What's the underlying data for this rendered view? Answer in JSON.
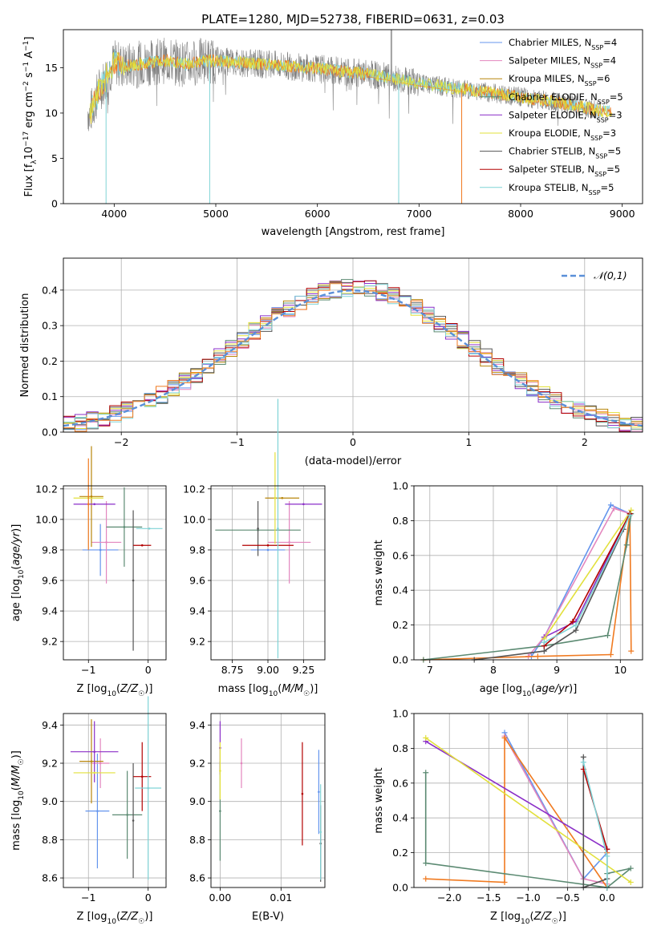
{
  "title": "PLATE=1280, MJD=52738, FIBERID=0631, z=0.03",
  "colors": {
    "Chabrier MILES": "#6495ed",
    "Salpeter MILES": "#e386be",
    "Kroupa MILES": "#b8860b",
    "Chabrier ELODIE": "#5b8a72",
    "Salpeter ELODIE": "#8b2fc8",
    "Kroupa ELODIE": "#e2e03b",
    "Chabrier STELIB": "#555555",
    "Salpeter STELIB": "#b30000",
    "Kroupa STELIB": "#7fd3d6",
    "orange": "#f07a20",
    "gauss": "#5a8fd8",
    "data": "#808080"
  },
  "chart_data": [
    {
      "id": "spectrum",
      "type": "line",
      "xlabel": "wavelength [Angstrom, rest frame]",
      "ylabel": "Flux [f_λ 10^-17 erg cm^-2 s^-1 A^-1]",
      "xlim": [
        3500,
        9200
      ],
      "ylim": [
        0,
        19.2
      ],
      "xticks": [
        "4000",
        "5000",
        "6000",
        "7000",
        "8000",
        "9000"
      ],
      "yticks": [
        "0",
        "5",
        "10",
        "15"
      ],
      "legend_position": "top-right",
      "legend": [
        "Chabrier MILES, N_SSP=4",
        "Salpeter MILES, N_SSP=4",
        "Kroupa MILES, N_SSP=6",
        "Chabrier ELODIE, N_SSP=5",
        "Salpeter ELODIE, N_SSP=3",
        "Kroupa ELODIE, N_SSP=3",
        "Chabrier STELIB, N_SSP=5",
        "Salpeter STELIB, N_SSP=5",
        "Kroupa STELIB, N_SSP=5"
      ],
      "continuum": {
        "x": [
          3750,
          3850,
          3950,
          4000,
          4100,
          4300,
          4500,
          4700,
          4900,
          5200,
          5600,
          6000,
          6500,
          7000,
          7400,
          7800,
          8300,
          8600,
          8800
        ],
        "y": [
          9.5,
          12.5,
          14.5,
          15.6,
          15.2,
          15.5,
          15.8,
          15.4,
          15.8,
          15.6,
          15.3,
          14.9,
          14.3,
          13.3,
          12.7,
          12.1,
          11.3,
          10.7,
          10.2
        ]
      },
      "dropouts": [
        [
          3920,
          0
        ],
        [
          4940,
          0
        ],
        [
          6800,
          0
        ],
        [
          7420,
          0
        ]
      ]
    },
    {
      "id": "residuals",
      "type": "bar",
      "xlabel": "(data-model)/error",
      "ylabel": "Normed distribution",
      "xlim": [
        -2.5,
        2.5
      ],
      "ylim": [
        0,
        0.49
      ],
      "xticks": [
        "−2",
        "−1",
        "0",
        "1",
        "2"
      ],
      "yticks": [
        "0.0",
        "0.1",
        "0.2",
        "0.3",
        "0.4"
      ],
      "legend": [
        "𝒩(0,1)"
      ],
      "legend_position": "top-right",
      "bin_width": 0.1,
      "bin_start": -2.5,
      "gaussian": {
        "mean": 0,
        "sigma": 1
      }
    },
    {
      "id": "age-vs-Z",
      "type": "scatter",
      "xlabel": "Z [log10(Z/Z☉)]",
      "ylabel": "age [log10(age/yr)]",
      "xlim": [
        -1.42,
        0.3
      ],
      "ylim": [
        9.08,
        10.22
      ],
      "xticks": [
        "−1",
        "0"
      ],
      "yticks": [
        "9.2",
        "9.4",
        "9.6",
        "9.8",
        "10.0",
        "10.2"
      ],
      "points": [
        {
          "s": "Chabrier MILES",
          "x": -0.8,
          "y": 9.8,
          "xerr": 0.3,
          "yerr": 0.17
        },
        {
          "s": "Salpeter MILES",
          "x": -0.7,
          "y": 9.85,
          "xerr": 0.25,
          "yerr": 0.27
        },
        {
          "s": "Kroupa MILES",
          "x": -0.95,
          "y": 10.15,
          "xerr": 0.2,
          "yerr": 0.33
        },
        {
          "s": "Chabrier ELODIE",
          "x": -0.4,
          "y": 9.95,
          "xerr": 0.3,
          "yerr": 0.26
        },
        {
          "s": "Salpeter ELODIE",
          "x": -0.9,
          "y": 10.1,
          "xerr": 0.35,
          "yerr": 0.0
        },
        {
          "s": "Kroupa ELODIE",
          "x": -1.0,
          "y": 10.14,
          "xerr": 0.25,
          "yerr": 0.0
        },
        {
          "s": "Chabrier STELIB",
          "x": -0.25,
          "y": 9.6,
          "xerr": 0.0,
          "yerr": 0.46
        },
        {
          "s": "Salpeter STELIB",
          "x": -0.1,
          "y": 9.83,
          "xerr": 0.15,
          "yerr": 0.0
        },
        {
          "s": "Kroupa STELIB",
          "x": 0.02,
          "y": 9.94,
          "xerr": 0.22,
          "yerr": 0.0
        },
        {
          "s": "orange",
          "x": -1.0,
          "y": 10.1,
          "xerr": 0.0,
          "yerr": 0.3
        }
      ]
    },
    {
      "id": "age-vs-mass",
      "type": "scatter",
      "xlabel": "mass [log10(M/M☉)]",
      "ylabel": "",
      "xlim": [
        8.6,
        9.4
      ],
      "ylim": [
        9.08,
        10.22
      ],
      "xticks": [
        "8.75",
        "9.00",
        "9.25"
      ],
      "yticks": [
        "9.2",
        "9.4",
        "9.6",
        "9.8",
        "10.0",
        "10.2"
      ],
      "points": [
        {
          "s": "Chabrier MILES",
          "x": 9.0,
          "y": 9.8,
          "xerr": 0.12,
          "yerr": 0.0
        },
        {
          "s": "Salpeter MILES",
          "x": 9.15,
          "y": 9.85,
          "xerr": 0.15,
          "yerr": 0.27
        },
        {
          "s": "Kroupa MILES",
          "x": 9.1,
          "y": 10.14,
          "xerr": 0.12,
          "yerr": 0.0
        },
        {
          "s": "Chabrier ELODIE",
          "x": 8.93,
          "y": 9.93,
          "xerr": 0.3,
          "yerr": 0.0
        },
        {
          "s": "Salpeter ELODIE",
          "x": 9.25,
          "y": 10.1,
          "xerr": 0.13,
          "yerr": 0.0
        },
        {
          "s": "Kroupa ELODIE",
          "x": 9.05,
          "y": 10.14,
          "xerr": 0.0,
          "yerr": 0.3
        },
        {
          "s": "Chabrier STELIB",
          "x": 8.93,
          "y": 9.94,
          "xerr": 0.0,
          "yerr": 0.18
        },
        {
          "s": "Salpeter STELIB",
          "x": 9.0,
          "y": 9.83,
          "xerr": 0.18,
          "yerr": 0.0
        },
        {
          "s": "Kroupa STELIB",
          "x": 9.07,
          "y": 9.94,
          "xerr": 0.0,
          "yerr": 0.85
        }
      ]
    },
    {
      "id": "massweight-vs-age",
      "type": "line",
      "xlabel": "age [log10(age/yr)]",
      "ylabel": "mass weight",
      "xlim": [
        6.75,
        10.35
      ],
      "ylim": [
        0,
        1
      ],
      "xticks": [
        "7",
        "8",
        "9",
        "10"
      ],
      "yticks": [
        "0.0",
        "0.2",
        "0.4",
        "0.6",
        "0.8",
        "1.0"
      ],
      "series": [
        {
          "s": "Chabrier MILES",
          "x": [
            8.6,
            8.8,
            9.85,
            10.15
          ],
          "y": [
            0.02,
            0.13,
            0.89,
            0.84
          ]
        },
        {
          "s": "Salpeter MILES",
          "x": [
            8.55,
            8.8,
            9.9,
            10.15
          ],
          "y": [
            0.02,
            0.13,
            0.87,
            0.84
          ]
        },
        {
          "s": "orange",
          "x": [
            6.9,
            8.7,
            9.85,
            10.15,
            10.17
          ],
          "y": [
            0.0,
            0.02,
            0.03,
            0.84,
            0.05
          ]
        },
        {
          "s": "Chabrier ELODIE",
          "x": [
            6.9,
            8.8,
            9.8,
            10.1,
            10.17
          ],
          "y": [
            0.0,
            0.08,
            0.14,
            0.66,
            0.84
          ]
        },
        {
          "s": "Salpeter ELODIE",
          "x": [
            8.8,
            9.3,
            10.15
          ],
          "y": [
            0.13,
            0.22,
            0.84
          ]
        },
        {
          "s": "Kroupa ELODIE",
          "x": [
            8.8,
            10.17
          ],
          "y": [
            0.12,
            0.86
          ]
        },
        {
          "s": "Chabrier STELIB",
          "x": [
            7.7,
            8.8,
            9.3,
            10.05,
            10.15
          ],
          "y": [
            0.0,
            0.05,
            0.17,
            0.75,
            0.84
          ]
        },
        {
          "s": "Salpeter STELIB",
          "x": [
            8.8,
            9.25,
            10.15
          ],
          "y": [
            0.08,
            0.22,
            0.84
          ]
        },
        {
          "s": "Kroupa STELIB",
          "x": [
            8.8,
            9.3,
            10.15
          ],
          "y": [
            0.1,
            0.2,
            0.83
          ]
        }
      ]
    },
    {
      "id": "mass-vs-Z",
      "type": "scatter",
      "xlabel": "Z [log10(Z/Z☉)]",
      "ylabel": "mass [log10(M/M☉)]",
      "xlim": [
        -1.42,
        0.3
      ],
      "ylim": [
        8.55,
        9.46
      ],
      "xticks": [
        "−1",
        "0"
      ],
      "yticks": [
        "8.6",
        "8.8",
        "9.0",
        "9.2",
        "9.4"
      ],
      "points": [
        {
          "s": "Chabrier MILES",
          "x": -0.85,
          "y": 8.95,
          "xerr": 0.2,
          "yerr": 0.3
        },
        {
          "s": "Salpeter MILES",
          "x": -0.8,
          "y": 9.2,
          "xerr": 0.15,
          "yerr": 0.13
        },
        {
          "s": "Kroupa MILES",
          "x": -0.95,
          "y": 9.21,
          "xerr": 0.2,
          "yerr": 0.22
        },
        {
          "s": "Chabrier ELODIE",
          "x": -0.35,
          "y": 8.93,
          "xerr": 0.25,
          "yerr": 0.23
        },
        {
          "s": "Salpeter ELODIE",
          "x": -0.9,
          "y": 9.26,
          "xerr": 0.4,
          "yerr": 0.16
        },
        {
          "s": "Kroupa ELODIE",
          "x": -0.9,
          "y": 9.15,
          "xerr": 0.35,
          "yerr": 0.0
        },
        {
          "s": "Chabrier STELIB",
          "x": -0.25,
          "y": 8.9,
          "xerr": 0.0,
          "yerr": 0.3
        },
        {
          "s": "Salpeter STELIB",
          "x": -0.1,
          "y": 9.13,
          "xerr": 0.15,
          "yerr": 0.18
        },
        {
          "s": "Kroupa STELIB",
          "x": 0.0,
          "y": 9.07,
          "xerr": 0.22,
          "yerr": 0.48
        }
      ]
    },
    {
      "id": "mass-vs-EBV",
      "type": "scatter",
      "xlabel": "E(B-V)",
      "ylabel": "",
      "xlim": [
        -0.0015,
        0.0172
      ],
      "ylim": [
        8.55,
        9.46
      ],
      "xticks": [
        "0.00",
        "0.01"
      ],
      "yticks": [
        "8.6",
        "8.8",
        "9.0",
        "9.2",
        "9.4"
      ],
      "points": [
        {
          "s": "Chabrier ELODIE",
          "x": 0.0,
          "y": 8.95,
          "xerr": 0,
          "yerr": 0.26
        },
        {
          "s": "Salpeter ELODIE",
          "x": 0.0,
          "y": 9.28,
          "xerr": 0,
          "yerr": 0.14
        },
        {
          "s": "Kroupa ELODIE",
          "x": 0.0,
          "y": 9.16,
          "xerr": 0,
          "yerr": 0.15
        },
        {
          "s": "Salpeter MILES",
          "x": 0.0035,
          "y": 9.2,
          "xerr": 0,
          "yerr": 0.13
        },
        {
          "s": "Salpeter STELIB",
          "x": 0.0135,
          "y": 9.04,
          "xerr": 0,
          "yerr": 0.27
        },
        {
          "s": "Chabrier MILES",
          "x": 0.0162,
          "y": 9.05,
          "xerr": 0,
          "yerr": 0.22
        },
        {
          "s": "Chabrier STELIB",
          "x": 0.0165,
          "y": 8.78,
          "xerr": 0,
          "yerr": 0.2
        },
        {
          "s": "Kroupa STELIB",
          "x": 0.0165,
          "y": 8.84,
          "xerr": 0,
          "yerr": 0.25
        }
      ]
    },
    {
      "id": "massweight-vs-Z",
      "type": "line",
      "xlabel": "Z [log10(Z/Z☉)]",
      "ylabel": "mass weight",
      "xlim": [
        -2.45,
        0.45
      ],
      "ylim": [
        0,
        1
      ],
      "xticks": [
        "−2.0",
        "−1.5",
        "−1.0",
        "−0.5",
        "0.0"
      ],
      "yticks": [
        "0.0",
        "0.2",
        "0.4",
        "0.6",
        "0.8",
        "1.0"
      ],
      "series": [
        {
          "s": "Chabrier MILES",
          "x": [
            -1.3,
            -0.3,
            0.0
          ],
          "y": [
            0.89,
            0.05,
            0.2
          ]
        },
        {
          "s": "Salpeter MILES",
          "x": [
            -1.3,
            -0.3,
            0.0
          ],
          "y": [
            0.87,
            0.05,
            0.02
          ]
        },
        {
          "s": "orange",
          "x": [
            -2.3,
            -1.3,
            -1.3,
            0.0,
            0.0
          ],
          "y": [
            0.05,
            0.03,
            0.86,
            0.0,
            0.2
          ]
        },
        {
          "s": "Chabrier ELODIE",
          "x": [
            -2.3,
            -2.3,
            0.0,
            0.3,
            0.0,
            0.0
          ],
          "y": [
            0.66,
            0.14,
            0.0,
            0.11,
            0.08,
            0.0
          ]
        },
        {
          "s": "Salpeter ELODIE",
          "x": [
            -2.3,
            0.0
          ],
          "y": [
            0.84,
            0.22
          ]
        },
        {
          "s": "Kroupa ELODIE",
          "x": [
            -2.3,
            0.3
          ],
          "y": [
            0.86,
            0.03
          ]
        },
        {
          "s": "Chabrier STELIB",
          "x": [
            -0.3,
            -0.3,
            0.0
          ],
          "y": [
            0.75,
            0.0,
            0.05
          ]
        },
        {
          "s": "Salpeter STELIB",
          "x": [
            -0.3,
            0.0
          ],
          "y": [
            0.68,
            0.22
          ]
        },
        {
          "s": "Kroupa STELIB",
          "x": [
            -0.3,
            0.0,
            0.0
          ],
          "y": [
            0.72,
            0.18,
            0.0
          ]
        }
      ]
    }
  ]
}
